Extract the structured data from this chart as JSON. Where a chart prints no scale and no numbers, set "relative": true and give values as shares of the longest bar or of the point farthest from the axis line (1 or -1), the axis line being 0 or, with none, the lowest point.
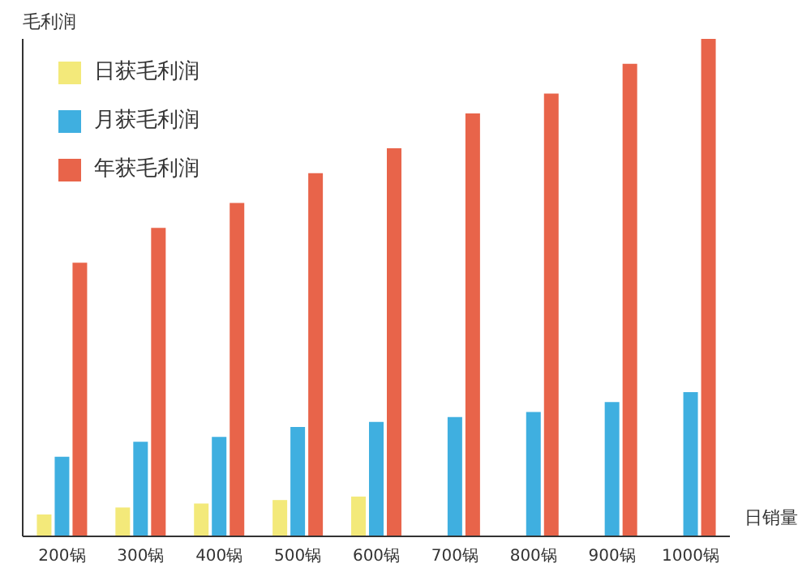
{
  "chart_data": {
    "type": "bar",
    "relative": true,
    "xlabel": "日销量",
    "ylabel": "毛利润",
    "categories": [
      "200锅",
      "300锅",
      "400锅",
      "500锅",
      "600锅",
      "700锅",
      "800锅",
      "900锅",
      "1000锅"
    ],
    "series": [
      {
        "name": "日获毛利润",
        "color": "#f3e97a",
        "values": [
          0.044,
          0.058,
          0.066,
          0.073,
          0.08,
          null,
          null,
          null,
          null
        ]
      },
      {
        "name": "月获毛利润",
        "color": "#3fafe0",
        "values": [
          0.16,
          0.19,
          0.2,
          0.22,
          0.23,
          0.24,
          0.25,
          0.27,
          0.29
        ]
      },
      {
        "name": "年获毛利润",
        "color": "#e8644a",
        "values": [
          0.55,
          0.62,
          0.67,
          0.73,
          0.78,
          0.85,
          0.89,
          0.95,
          1
        ]
      }
    ],
    "legend": "top left",
    "grid": false
  }
}
